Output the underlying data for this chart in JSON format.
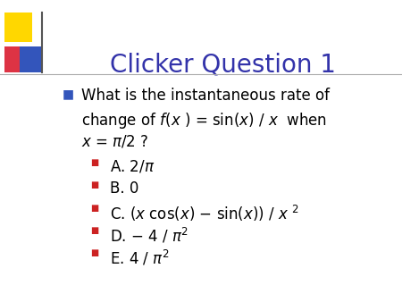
{
  "title": "Clicker Question 1",
  "title_color": "#3333AA",
  "bg_color": "#ffffff",
  "bullet_color_main": "#3355BB",
  "bullet_color_sub": "#CC2222",
  "accent_gold": "#FFD700",
  "accent_red": "#DD3344",
  "accent_blue": "#3355BB",
  "line_color": "#AAAAAA",
  "title_fontsize": 20,
  "main_fontsize": 12,
  "answer_fontsize": 12
}
